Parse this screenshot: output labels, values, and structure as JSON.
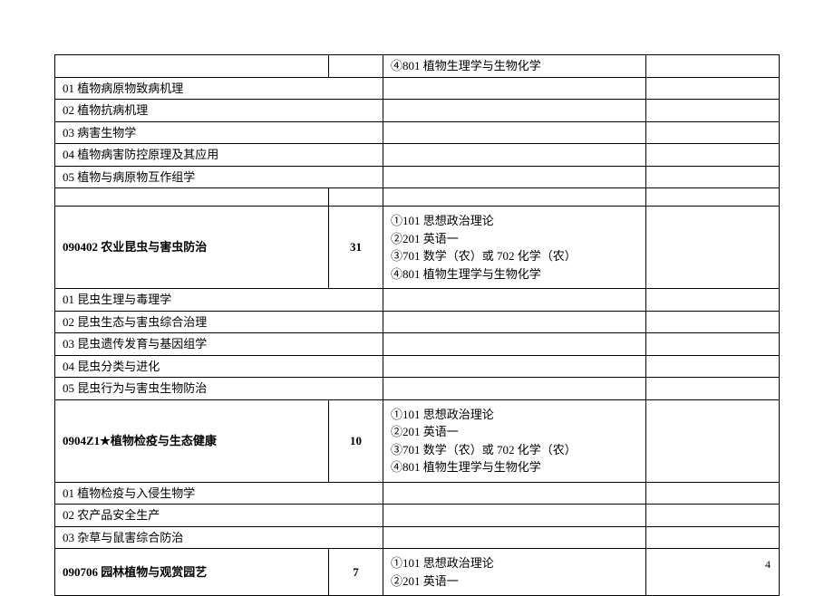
{
  "rows": [
    {
      "c1": "",
      "c2": "",
      "c3": "④801 植物生理学与生物化学",
      "c4": "",
      "tall": false,
      "bold": false
    },
    {
      "c1": "01 植物病原物致病机理",
      "span": true
    },
    {
      "c1": "02 植物抗病机理",
      "span": true
    },
    {
      "c1": "03 病害生物学",
      "span": true
    },
    {
      "c1": "04  植物病害防控原理及其应用",
      "span": true
    },
    {
      "c1": "05 植物与病原物互作组学",
      "span": true
    },
    {
      "c1": "",
      "c2": "",
      "c3": "",
      "c4": "",
      "tall": false,
      "bold": false
    },
    {
      "c1": "090402 农业昆虫与害虫防治",
      "c2": "31",
      "c3": "①101 思想政治理论\n②201 英语一\n③701 数学（农）或 702 化学（农）\n④801 植物生理学与生物化学",
      "c4": "",
      "tall": true,
      "bold": true
    },
    {
      "c1": "01 昆虫生理与毒理学",
      "span": true
    },
    {
      "c1": "02 昆虫生态与害虫综合治理",
      "span": true
    },
    {
      "c1": "03 昆虫遗传发育与基因组学",
      "span": true
    },
    {
      "c1": "04 昆虫分类与进化",
      "span": true
    },
    {
      "c1": "05 昆虫行为与害虫生物防治",
      "span": true
    },
    {
      "c1": "0904Z1★植物检疫与生态健康",
      "c2": "10",
      "c3": "①101 思想政治理论\n②201 英语一\n③701 数学（农）或 702 化学（农）\n④801 植物生理学与生物化学",
      "c4": "",
      "tall": true,
      "bold": true
    },
    {
      "c1": "01 植物检疫与入侵生物学",
      "span": true
    },
    {
      "c1": "02  农产品安全生产",
      "span": true
    },
    {
      "c1": "03  杂草与鼠害综合防治",
      "span": true
    },
    {
      "c1": "090706 园林植物与观赏园艺",
      "c2": "7",
      "c3": "①101 思想政治理论\n②201 英语一",
      "c4": "",
      "tall": true,
      "bold": true
    }
  ],
  "pageNumber": "4"
}
